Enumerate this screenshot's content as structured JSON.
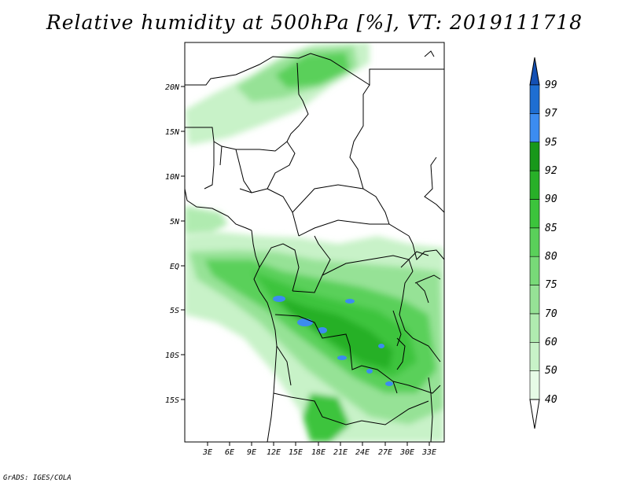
{
  "title": "Relative humidity at 500hPa [%], VT: 2019111718",
  "credit": "GrADS: IGES/COLA",
  "map": {
    "lon_labels": [
      "3E",
      "6E",
      "9E",
      "12E",
      "15E",
      "18E",
      "21E",
      "24E",
      "27E",
      "30E",
      "33E"
    ],
    "lat_labels": [
      "20N",
      "15N",
      "10N",
      "5N",
      "EQ",
      "5S",
      "10S",
      "15S"
    ]
  },
  "colorbar": {
    "levels": [
      "40",
      "50",
      "60",
      "70",
      "75",
      "80",
      "85",
      "90",
      "92",
      "95",
      "97",
      "99"
    ],
    "colors": [
      "#e6fbe6",
      "#c8f2c8",
      "#b0ebb0",
      "#96e296",
      "#78da78",
      "#5ad05a",
      "#3cc43c",
      "#28b028",
      "#18981a",
      "#3c8cf0",
      "#1e6ed2",
      "#1450b4"
    ]
  }
}
